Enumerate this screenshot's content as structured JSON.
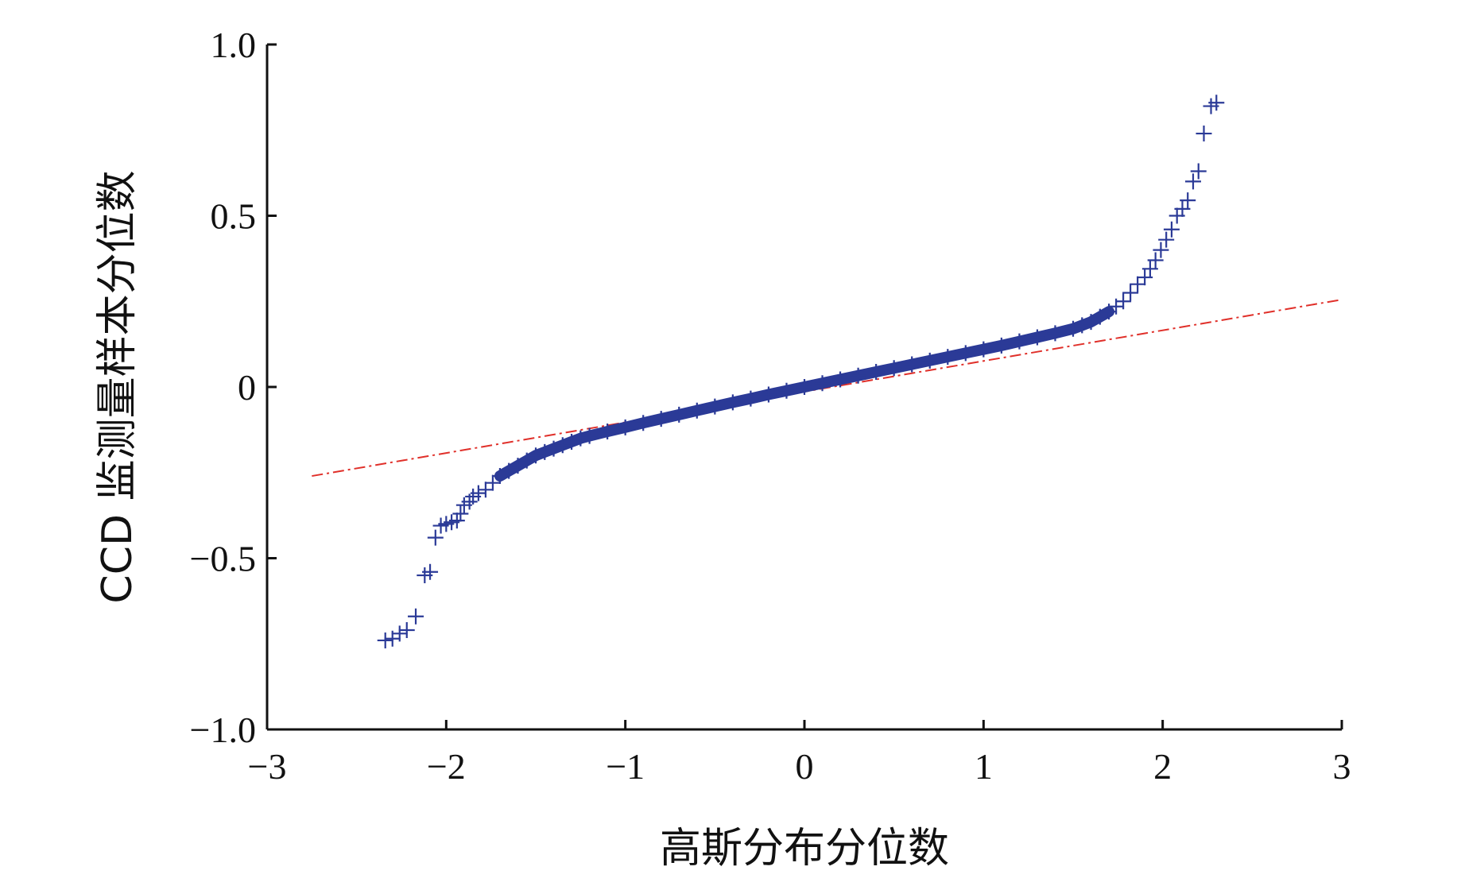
{
  "chart_data": {
    "type": "scatter",
    "subtype": "qq-plot",
    "xlabel": "高斯分布分位数",
    "ylabel": "CCD 监测量样本分位数",
    "xlim": [
      -3,
      3
    ],
    "ylim": [
      -1.0,
      1.0
    ],
    "x_ticks": [
      -3,
      -2,
      -1,
      0,
      1,
      2,
      3
    ],
    "x_tick_labels": [
      "−3",
      "−2",
      "−1",
      "0",
      "1",
      "2",
      "3"
    ],
    "y_ticks": [
      -1.0,
      -0.5,
      0,
      0.5,
      1.0
    ],
    "y_tick_labels": [
      "−1.0",
      "−0.5",
      "0",
      "0.5",
      "1.0"
    ],
    "grid": false,
    "marker": "+",
    "colors": {
      "points": "#2b3a97",
      "reference_line": "#e0302a",
      "axes": "#111111"
    },
    "reference_line": {
      "x": [
        -2.75,
        3.0
      ],
      "y": [
        -0.26,
        0.255
      ]
    },
    "points": [
      {
        "x": -2.34,
        "y": -0.74
      },
      {
        "x": -2.3,
        "y": -0.735
      },
      {
        "x": -2.26,
        "y": -0.72
      },
      {
        "x": -2.22,
        "y": -0.71
      },
      {
        "x": -2.17,
        "y": -0.67
      },
      {
        "x": -2.12,
        "y": -0.55
      },
      {
        "x": -2.09,
        "y": -0.54
      },
      {
        "x": -2.06,
        "y": -0.44
      },
      {
        "x": -2.03,
        "y": -0.405
      },
      {
        "x": -2.0,
        "y": -0.4
      },
      {
        "x": -1.97,
        "y": -0.395
      },
      {
        "x": -1.94,
        "y": -0.39
      },
      {
        "x": -1.92,
        "y": -0.37
      },
      {
        "x": -1.9,
        "y": -0.345
      },
      {
        "x": -1.87,
        "y": -0.335
      },
      {
        "x": -1.85,
        "y": -0.32
      },
      {
        "x": -1.82,
        "y": -0.31
      },
      {
        "x": -1.78,
        "y": -0.3
      },
      {
        "x": -1.74,
        "y": -0.28
      },
      {
        "x": -1.7,
        "y": -0.26
      },
      {
        "x": -1.65,
        "y": -0.245
      },
      {
        "x": -1.6,
        "y": -0.23
      },
      {
        "x": -1.55,
        "y": -0.215
      },
      {
        "x": -1.5,
        "y": -0.2
      },
      {
        "x": -1.45,
        "y": -0.19
      },
      {
        "x": -1.4,
        "y": -0.18
      },
      {
        "x": -1.35,
        "y": -0.17
      },
      {
        "x": -1.3,
        "y": -0.16
      },
      {
        "x": -1.25,
        "y": -0.15
      },
      {
        "x": -1.2,
        "y": -0.143
      },
      {
        "x": -1.1,
        "y": -0.13
      },
      {
        "x": -1.0,
        "y": -0.118
      },
      {
        "x": -0.9,
        "y": -0.105
      },
      {
        "x": -0.8,
        "y": -0.093
      },
      {
        "x": -0.7,
        "y": -0.081
      },
      {
        "x": -0.6,
        "y": -0.069
      },
      {
        "x": -0.5,
        "y": -0.057
      },
      {
        "x": -0.4,
        "y": -0.045
      },
      {
        "x": -0.3,
        "y": -0.034
      },
      {
        "x": -0.2,
        "y": -0.022
      },
      {
        "x": -0.1,
        "y": -0.011
      },
      {
        "x": 0.0,
        "y": 0.0
      },
      {
        "x": 0.1,
        "y": 0.011
      },
      {
        "x": 0.2,
        "y": 0.022
      },
      {
        "x": 0.3,
        "y": 0.033
      },
      {
        "x": 0.4,
        "y": 0.044
      },
      {
        "x": 0.5,
        "y": 0.055
      },
      {
        "x": 0.6,
        "y": 0.066
      },
      {
        "x": 0.7,
        "y": 0.077
      },
      {
        "x": 0.8,
        "y": 0.088
      },
      {
        "x": 0.9,
        "y": 0.099
      },
      {
        "x": 1.0,
        "y": 0.11
      },
      {
        "x": 1.1,
        "y": 0.121
      },
      {
        "x": 1.2,
        "y": 0.133
      },
      {
        "x": 1.3,
        "y": 0.145
      },
      {
        "x": 1.4,
        "y": 0.157
      },
      {
        "x": 1.5,
        "y": 0.17
      },
      {
        "x": 1.55,
        "y": 0.18
      },
      {
        "x": 1.6,
        "y": 0.19
      },
      {
        "x": 1.65,
        "y": 0.205
      },
      {
        "x": 1.7,
        "y": 0.22
      },
      {
        "x": 1.74,
        "y": 0.235
      },
      {
        "x": 1.78,
        "y": 0.25
      },
      {
        "x": 1.82,
        "y": 0.275
      },
      {
        "x": 1.86,
        "y": 0.3
      },
      {
        "x": 1.9,
        "y": 0.32
      },
      {
        "x": 1.93,
        "y": 0.345
      },
      {
        "x": 1.96,
        "y": 0.37
      },
      {
        "x": 1.99,
        "y": 0.4
      },
      {
        "x": 2.02,
        "y": 0.43
      },
      {
        "x": 2.05,
        "y": 0.46
      },
      {
        "x": 2.08,
        "y": 0.5
      },
      {
        "x": 2.11,
        "y": 0.52
      },
      {
        "x": 2.14,
        "y": 0.545
      },
      {
        "x": 2.17,
        "y": 0.6
      },
      {
        "x": 2.2,
        "y": 0.63
      },
      {
        "x": 2.23,
        "y": 0.74
      },
      {
        "x": 2.27,
        "y": 0.82
      },
      {
        "x": 2.3,
        "y": 0.83
      }
    ]
  }
}
